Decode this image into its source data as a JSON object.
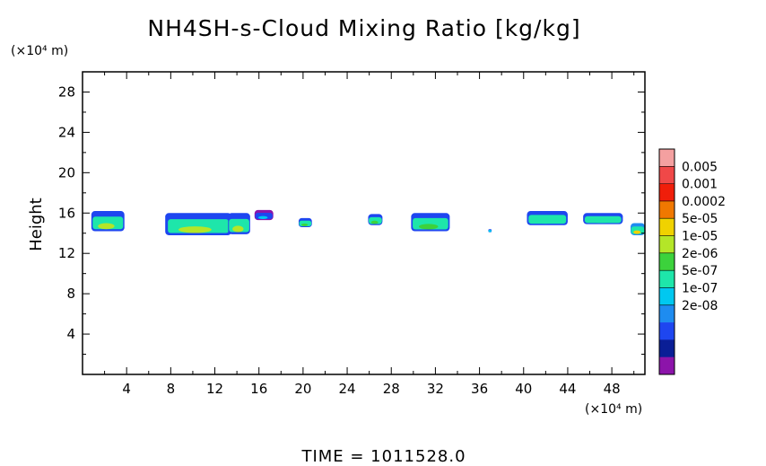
{
  "chart_data": {
    "type": "heatmap",
    "title": "NH4SH-s-Cloud Mixing Ratio [kg/kg]",
    "ylabel": "Height",
    "y_unit": "(×10⁴ m)",
    "x_unit": "(×10⁴ m)",
    "xlim": [
      0,
      51
    ],
    "ylim": [
      0,
      30
    ],
    "x_ticks": [
      4,
      8,
      12,
      16,
      20,
      24,
      28,
      32,
      36,
      40,
      44,
      48
    ],
    "x_tick_labels": [
      "4",
      "8",
      "12",
      "16",
      "20",
      "24",
      "28",
      "32",
      "36",
      "40",
      "44",
      "48"
    ],
    "y_ticks": [
      4,
      8,
      12,
      16,
      20,
      24,
      28
    ],
    "y_tick_labels": [
      "4",
      "8",
      "12",
      "16",
      "20",
      "24",
      "28"
    ],
    "grid": false,
    "colorbar": {
      "labels": [
        "0.005",
        "0.001",
        "0.0002",
        "5e-05",
        "1e-05",
        "2e-06",
        "5e-07",
        "1e-07",
        "2e-08"
      ],
      "colors": [
        "#f4a0a0",
        "#f04848",
        "#f01e0a",
        "#f07800",
        "#f0d200",
        "#b4e628",
        "#3cd23c",
        "#1ee6aa",
        "#00c8f0",
        "#1e8cf0",
        "#1e46f0",
        "#0a1e96",
        "#8c14aa"
      ]
    },
    "clouds": [
      {
        "x": [
          0.8,
          3.8
        ],
        "y": [
          14.2,
          16.2
        ],
        "band": [
          "#1e46f0",
          "#1ee6aa",
          "#b4e628"
        ]
      },
      {
        "x": [
          7.5,
          13.5
        ],
        "y": [
          13.8,
          16.0
        ],
        "band": [
          "#1e46f0",
          "#1ee6aa",
          "#b4e628"
        ]
      },
      {
        "x": [
          13.2,
          15.2
        ],
        "y": [
          13.9,
          16.0
        ],
        "band": [
          "#1e46f0",
          "#1ee6aa",
          "#b4e628"
        ]
      },
      {
        "x": [
          15.6,
          17.3
        ],
        "y": [
          15.3,
          16.3
        ],
        "band": [
          "#8c14aa",
          "#1e46f0",
          "#00c8f0"
        ]
      },
      {
        "x": [
          19.6,
          20.8
        ],
        "y": [
          14.6,
          15.5
        ],
        "band": [
          "#1e46f0",
          "#1ee6aa",
          "#3cd23c"
        ]
      },
      {
        "x": [
          25.9,
          27.2
        ],
        "y": [
          14.8,
          15.9
        ],
        "band": [
          "#1e46f0",
          "#1ee6aa",
          "#3cd23c"
        ]
      },
      {
        "x": [
          29.8,
          33.3
        ],
        "y": [
          14.2,
          16.0
        ],
        "band": [
          "#1e46f0",
          "#1ee6aa",
          "#3cd23c"
        ]
      },
      {
        "x": [
          36.8,
          37.1
        ],
        "y": [
          14.1,
          14.4
        ],
        "band": [
          "#1e46f0",
          "#00c8f0",
          "#00c8f0"
        ]
      },
      {
        "x": [
          40.3,
          44.0
        ],
        "y": [
          14.8,
          16.2
        ],
        "band": [
          "#1e46f0",
          "#1ee6aa",
          "#1ee6aa"
        ]
      },
      {
        "x": [
          45.4,
          49.0
        ],
        "y": [
          14.9,
          16.0
        ],
        "band": [
          "#1e46f0",
          "#1ee6aa",
          "#1ee6aa"
        ]
      },
      {
        "x": [
          49.7,
          51.0
        ],
        "y": [
          13.8,
          15.0
        ],
        "band": [
          "#1e8cf0",
          "#1ee6aa",
          "#f0d200"
        ]
      }
    ],
    "time_label": "TIME = 1011528.0"
  }
}
